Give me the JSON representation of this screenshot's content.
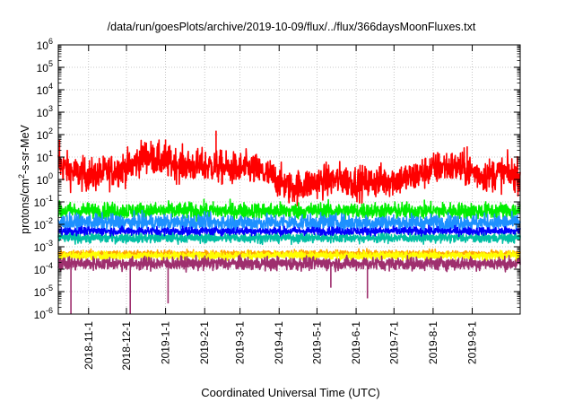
{
  "chart_data": {
    "type": "line",
    "title": "/data/run/goesPlots/archive/2019-10-09/flux/../flux/366daysMoonFluxes.txt",
    "xlabel": "Coordinated Universal Time (UTC)",
    "ylabel": {
      "pre": "protons/cm",
      "sup": "2",
      "post": "-s-sr-MeV"
    },
    "y_scale": "log",
    "ylim": [
      1e-06,
      1000000.0
    ],
    "y_ticks": [
      {
        "base": "10",
        "exp": "-6"
      },
      {
        "base": "10",
        "exp": "-5"
      },
      {
        "base": "10",
        "exp": "-4"
      },
      {
        "base": "10",
        "exp": "-3"
      },
      {
        "base": "10",
        "exp": "-2"
      },
      {
        "base": "10",
        "exp": "-1"
      },
      {
        "base": "10",
        "exp": "0"
      },
      {
        "base": "10",
        "exp": "1"
      },
      {
        "base": "10",
        "exp": "2"
      },
      {
        "base": "10",
        "exp": "3"
      },
      {
        "base": "10",
        "exp": "4"
      },
      {
        "base": "10",
        "exp": "5"
      },
      {
        "base": "10",
        "exp": "6"
      }
    ],
    "xlim": [
      "2018-10-08",
      "2019-10-09"
    ],
    "x_ticks": [
      "2018-11-1",
      "2018-12-1",
      "2019-1-1",
      "2019-2-1",
      "2019-3-1",
      "2019-4-1",
      "2019-5-1",
      "2019-6-1",
      "2019-7-1",
      "2019-8-1",
      "2019-9-1"
    ],
    "x_tick_dates": [
      "2018-11-01",
      "2018-12-01",
      "2019-01-01",
      "2019-02-01",
      "2019-03-01",
      "2019-04-01",
      "2019-05-01",
      "2019-06-01",
      "2019-07-01",
      "2019-08-01",
      "2019-09-01"
    ],
    "grid": true,
    "legend": "none",
    "series": [
      {
        "color": "#ff0000",
        "noise_decades": 0.5,
        "points": [
          [
            "2018-10-08",
            5
          ],
          [
            "2018-10-20",
            2
          ],
          [
            "2018-11-05",
            1.5
          ],
          [
            "2018-11-20",
            2.5
          ],
          [
            "2018-12-05",
            4
          ],
          [
            "2018-12-15",
            12
          ],
          [
            "2019-01-01",
            6
          ],
          [
            "2019-01-20",
            4
          ],
          [
            "2019-02-05",
            4
          ],
          [
            "2019-02-20",
            3
          ],
          [
            "2019-03-10",
            3
          ],
          [
            "2019-03-25",
            1.5
          ],
          [
            "2019-04-10",
            0.4
          ],
          [
            "2019-05-01",
            0.8
          ],
          [
            "2019-05-20",
            1
          ],
          [
            "2019-06-05",
            0.7
          ],
          [
            "2019-06-25",
            0.9
          ],
          [
            "2019-07-15",
            1.2
          ],
          [
            "2019-07-28",
            2.5
          ],
          [
            "2019-08-10",
            4
          ],
          [
            "2019-08-25",
            3
          ],
          [
            "2019-09-10",
            1.5
          ],
          [
            "2019-09-25",
            2
          ],
          [
            "2019-10-09",
            1.5
          ]
        ],
        "spikes": [
          [
            "2019-01-01",
            60
          ],
          [
            "2019-02-10",
            150
          ],
          [
            "2019-08-28",
            30
          ],
          [
            "2018-10-09",
            60
          ]
        ],
        "dips": []
      },
      {
        "color": "#00ee00",
        "noise_decades": 0.25,
        "points": [
          [
            "2018-10-08",
            0.04
          ],
          [
            "2019-10-09",
            0.04
          ]
        ],
        "spikes": [],
        "dips": []
      },
      {
        "color": "#1e90ff",
        "noise_decades": 0.25,
        "points": [
          [
            "2018-10-08",
            0.012
          ],
          [
            "2019-10-09",
            0.012
          ]
        ],
        "spikes": [],
        "dips": []
      },
      {
        "color": "#00bfa5",
        "noise_decades": 0.15,
        "points": [
          [
            "2018-10-08",
            0.0025
          ],
          [
            "2019-10-09",
            0.0025
          ]
        ],
        "spikes": [],
        "dips": []
      },
      {
        "color": "#0000ff",
        "noise_decades": 0.12,
        "points": [
          [
            "2018-10-08",
            0.005
          ],
          [
            "2019-10-09",
            0.005
          ]
        ],
        "spikes": [],
        "dips": []
      },
      {
        "color": "#ffa500",
        "noise_decades": 0.1,
        "points": [
          [
            "2018-10-08",
            0.0005
          ],
          [
            "2019-10-09",
            0.0005
          ]
        ],
        "spikes": [],
        "dips": []
      },
      {
        "color": "#ffff00",
        "noise_decades": 0.12,
        "points": [
          [
            "2018-10-08",
            0.0004
          ],
          [
            "2019-10-09",
            0.0004
          ]
        ],
        "spikes": [],
        "dips": []
      },
      {
        "color": "#9e2f6e",
        "noise_decades": 0.2,
        "points": [
          [
            "2018-10-08",
            0.00018
          ],
          [
            "2019-10-09",
            0.00018
          ]
        ],
        "spikes": [],
        "dips": [
          [
            "2018-10-18",
            1e-06
          ],
          [
            "2018-12-04",
            1e-06
          ],
          [
            "2019-01-03",
            3e-06
          ],
          [
            "2019-05-12",
            1.5e-05
          ],
          [
            "2019-06-10",
            5e-06
          ]
        ]
      }
    ]
  }
}
